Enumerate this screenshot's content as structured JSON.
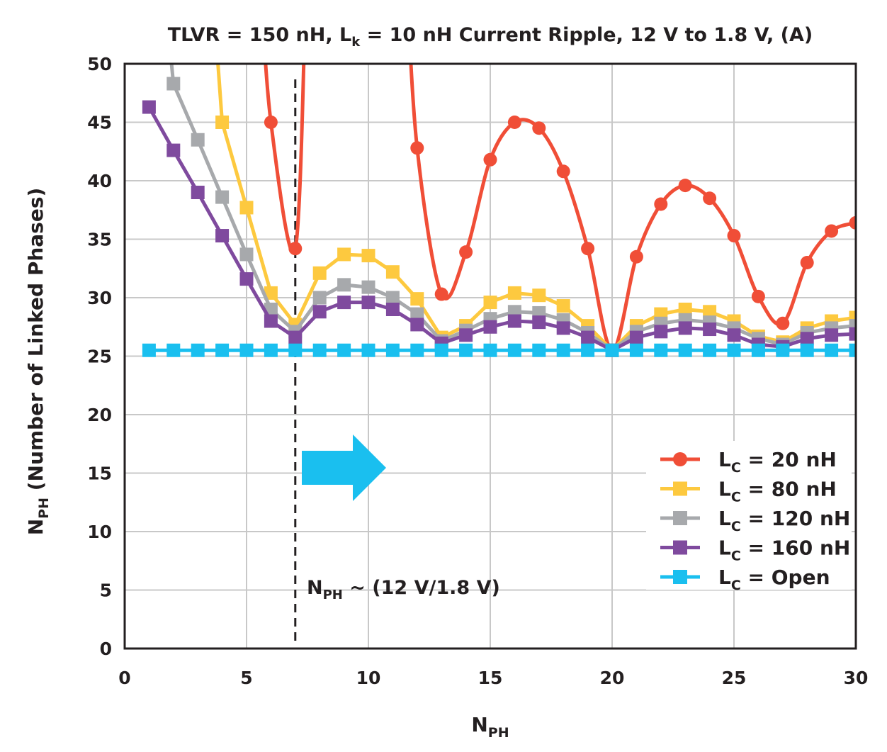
{
  "chart_data": {
    "type": "line",
    "title": {
      "main": "TLVR = 150 nH, L",
      "sub": "k",
      "rest": " = 10 nH Current Ripple, 12 V to 1.8 V, (A)"
    },
    "xlabel": {
      "main": "N",
      "sub": "PH"
    },
    "ylabel": {
      "main": "N",
      "sub": "PH",
      "rest": " (Number of Linked Phases)"
    },
    "xlim": [
      0,
      30
    ],
    "ylim": [
      0,
      50
    ],
    "xticks": [
      0,
      5,
      10,
      15,
      20,
      25,
      30
    ],
    "yticks": [
      0,
      5,
      10,
      15,
      20,
      25,
      30,
      35,
      40,
      45,
      50
    ],
    "grid": true,
    "legend_position": "bottom-right",
    "x": [
      1,
      2,
      3,
      4,
      5,
      6,
      7,
      8,
      9,
      10,
      11,
      12,
      13,
      14,
      15,
      16,
      17,
      18,
      19,
      20,
      21,
      22,
      23,
      24,
      25,
      26,
      27,
      28,
      29,
      30
    ],
    "series": [
      {
        "name": {
          "main": "L",
          "sub": "C",
          "rest": " = 20 nH"
        },
        "color": "#f04e37",
        "marker": "circle",
        "smooth": true,
        "values": [
          null,
          null,
          null,
          null,
          null,
          45,
          34.2,
          null,
          null,
          null,
          null,
          42.8,
          30.3,
          33.9,
          41.8,
          45.0,
          44.5,
          40.8,
          34.2,
          25.5,
          33.5,
          38.0,
          39.6,
          38.5,
          35.3,
          30.1,
          27.8,
          33.0,
          35.7,
          36.4
        ]
      },
      {
        "name": {
          "main": "L",
          "sub": "C",
          "rest": " = 80 nH"
        },
        "color": "#fdc93f",
        "marker": "square",
        "values": [
          null,
          null,
          null,
          45.0,
          37.7,
          30.4,
          27.7,
          32.1,
          33.7,
          33.6,
          32.2,
          29.9,
          26.6,
          27.6,
          29.6,
          30.4,
          30.2,
          29.3,
          27.6,
          25.5,
          27.6,
          28.6,
          29.0,
          28.8,
          28.0,
          26.7,
          26.2,
          27.4,
          28.0,
          28.3
        ]
      },
      {
        "name": {
          "main": "L",
          "sub": "C",
          "rest": " = 120 nH"
        },
        "color": "#a7a9ac",
        "marker": "square",
        "values": [
          null,
          48.3,
          43.5,
          38.6,
          33.7,
          29.0,
          27.1,
          30.0,
          31.1,
          30.9,
          30.0,
          28.6,
          26.3,
          27.2,
          28.2,
          28.8,
          28.7,
          28.1,
          27.0,
          25.5,
          27.1,
          27.8,
          28.1,
          27.9,
          27.4,
          26.5,
          26.0,
          27.0,
          27.4,
          27.6
        ]
      },
      {
        "name": {
          "main": "L",
          "sub": "C",
          "rest": " = 160 nH"
        },
        "color": "#7f4a9e",
        "marker": "square",
        "values": [
          46.3,
          42.6,
          39.0,
          35.3,
          31.6,
          28.0,
          26.6,
          28.8,
          29.6,
          29.6,
          29.0,
          27.7,
          26.1,
          26.8,
          27.5,
          28.0,
          27.9,
          27.4,
          26.6,
          25.5,
          26.6,
          27.1,
          27.4,
          27.3,
          26.8,
          26.0,
          25.8,
          26.5,
          26.8,
          26.9
        ]
      },
      {
        "name": {
          "main": "L",
          "sub": "C",
          "rest": " = Open"
        },
        "color": "#1abfef",
        "marker": "square",
        "values": [
          25.5,
          25.5,
          25.5,
          25.5,
          25.5,
          25.5,
          25.5,
          25.5,
          25.5,
          25.5,
          25.5,
          25.5,
          25.5,
          25.5,
          25.5,
          25.5,
          25.5,
          25.5,
          25.5,
          25.5,
          25.5,
          25.5,
          25.5,
          25.5,
          25.5,
          25.5,
          25.5,
          25.5,
          25.5,
          25.5
        ]
      }
    ],
    "annotation": {
      "main": "N",
      "sub": "PH",
      "rest": " ~ (12 V/1.8 V)",
      "x": 7,
      "arrow_color": "#1abfef"
    }
  }
}
